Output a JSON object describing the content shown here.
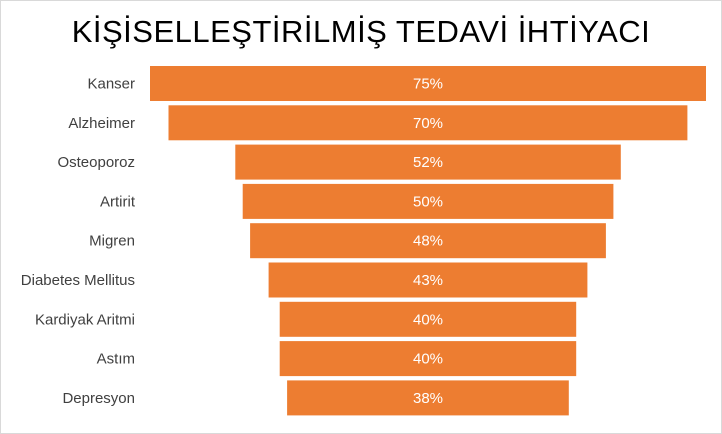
{
  "chart_data": {
    "type": "bar",
    "subtype": "funnel",
    "title": "KİŞİSELLEŞTİRİLMİŞ TEDAVİ İHTİYACI",
    "categories": [
      "Kanser",
      "Alzheimer",
      "Osteoporoz",
      "Artirit",
      "Migren",
      "Diabetes Mellitus",
      "Kardiyak Aritmi",
      "Astım",
      "Depresyon"
    ],
    "values": [
      75,
      70,
      52,
      50,
      48,
      43,
      40,
      40,
      38
    ],
    "value_labels": [
      "75%",
      "70%",
      "52%",
      "50%",
      "48%",
      "43%",
      "40%",
      "40%",
      "38%"
    ],
    "unit": "%",
    "bar_color": "#ED7D31",
    "grid": false,
    "legend": "none"
  }
}
